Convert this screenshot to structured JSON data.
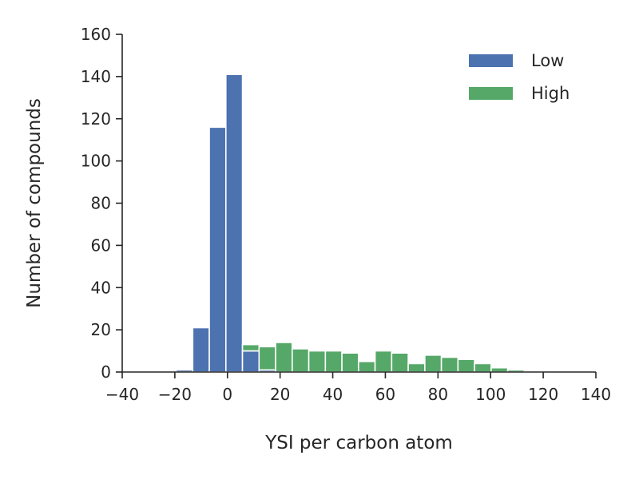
{
  "chart_data": {
    "type": "bar",
    "stacked": true,
    "xlabel": "YSI per carbon atom",
    "ylabel": "Number of compounds",
    "xlim": [
      -40,
      140
    ],
    "ylim": [
      0,
      160
    ],
    "xticks": [
      -40,
      -20,
      0,
      20,
      40,
      60,
      80,
      100,
      120,
      140
    ],
    "yticks": [
      0,
      20,
      40,
      60,
      80,
      100,
      120,
      140,
      160
    ],
    "xtick_labels": [
      "−40",
      "−20",
      "0",
      "20",
      "40",
      "60",
      "80",
      "100",
      "120",
      "140"
    ],
    "ytick_labels": [
      "0",
      "20",
      "40",
      "60",
      "80",
      "100",
      "120",
      "140",
      "160"
    ],
    "bin_width": 6.3,
    "bin_edges_start": -19.5,
    "bin_centers": [
      -16.35,
      -10.05,
      -3.75,
      2.55,
      8.85,
      15.15,
      21.45,
      27.75,
      34.05,
      40.35,
      46.65,
      52.95,
      59.25,
      65.55,
      71.85,
      78.15,
      84.45,
      90.75,
      97.05,
      103.35,
      109.65,
      115.95
    ],
    "series": [
      {
        "name": "Low",
        "color": "#4c72b0",
        "values": [
          1,
          21,
          116,
          141,
          10,
          1,
          0,
          0,
          0,
          0,
          0,
          0,
          0,
          0,
          0,
          0,
          0,
          0,
          0,
          0,
          0,
          0
        ]
      },
      {
        "name": "High",
        "color": "#55a868",
        "values": [
          0,
          0,
          0,
          0,
          3,
          11,
          14,
          11,
          10,
          10,
          9,
          5,
          10,
          9,
          4,
          8,
          7,
          6,
          4,
          2,
          1,
          0
        ]
      }
    ],
    "legend_position": "top-right",
    "grid": false
  }
}
